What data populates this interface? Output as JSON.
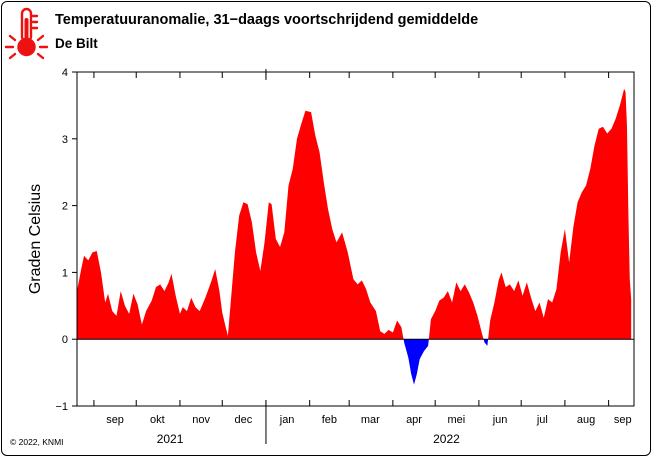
{
  "header": {
    "title": "Temperatuuranomalie, 31−daags voortschrijdend gemiddelde",
    "subtitle": "De Bilt",
    "icon": "thermometer-icon",
    "icon_color": "#ee1111"
  },
  "footer": {
    "copyright": "© 2022, KNMI"
  },
  "chart_data": {
    "type": "area",
    "title": "Temperatuuranomalie, 31−daags voortschrijdend gemiddelde",
    "subtitle": "De Bilt",
    "ylabel": "Graden Celsius",
    "xlabel": "",
    "ylim": [
      -1,
      4
    ],
    "yticks": [
      -1,
      0,
      1,
      2,
      3,
      4
    ],
    "xlim": [
      "2021-08-20",
      "2022-09-19"
    ],
    "grid": false,
    "legend": "none",
    "colors": {
      "positive": "#ff0000",
      "negative": "#0000ff"
    },
    "month_labels": [
      {
        "label": "sep",
        "date": "2021-09-16"
      },
      {
        "label": "okt",
        "date": "2021-10-16"
      },
      {
        "label": "nov",
        "date": "2021-11-16"
      },
      {
        "label": "dec",
        "date": "2021-12-16"
      },
      {
        "label": "jan",
        "date": "2022-01-16"
      },
      {
        "label": "feb",
        "date": "2022-02-15"
      },
      {
        "label": "mar",
        "date": "2022-03-16"
      },
      {
        "label": "apr",
        "date": "2022-04-16"
      },
      {
        "label": "mei",
        "date": "2022-05-16"
      },
      {
        "label": "jun",
        "date": "2022-06-16"
      },
      {
        "label": "jul",
        "date": "2022-07-16"
      },
      {
        "label": "aug",
        "date": "2022-08-16"
      },
      {
        "label": "sep",
        "date": "2022-09-11"
      }
    ],
    "month_ticks": [
      "2021-09-01",
      "2021-10-01",
      "2021-11-01",
      "2021-12-01",
      "2022-01-01",
      "2022-02-01",
      "2022-03-01",
      "2022-04-01",
      "2022-05-01",
      "2022-06-01",
      "2022-07-01",
      "2022-08-01",
      "2022-09-01"
    ],
    "year_labels": [
      {
        "label": "2021",
        "date": "2021-10-25"
      },
      {
        "label": "2022",
        "date": "2022-05-09"
      }
    ],
    "year_separators": [
      "2022-01-01"
    ],
    "series": [
      {
        "values": [
          [
            "2021-08-20",
            0.72
          ],
          [
            "2021-08-23",
            1.05
          ],
          [
            "2021-08-25",
            1.25
          ],
          [
            "2021-08-28",
            1.18
          ],
          [
            "2021-08-31",
            1.3
          ],
          [
            "2021-09-03",
            1.32
          ],
          [
            "2021-09-06",
            1.0
          ],
          [
            "2021-09-09",
            0.55
          ],
          [
            "2021-09-11",
            0.68
          ],
          [
            "2021-09-14",
            0.42
          ],
          [
            "2021-09-17",
            0.35
          ],
          [
            "2021-09-20",
            0.72
          ],
          [
            "2021-09-23",
            0.5
          ],
          [
            "2021-09-26",
            0.38
          ],
          [
            "2021-09-29",
            0.68
          ],
          [
            "2021-10-02",
            0.52
          ],
          [
            "2021-10-05",
            0.22
          ],
          [
            "2021-10-08",
            0.42
          ],
          [
            "2021-10-12",
            0.58
          ],
          [
            "2021-10-15",
            0.78
          ],
          [
            "2021-10-18",
            0.82
          ],
          [
            "2021-10-21",
            0.72
          ],
          [
            "2021-10-24",
            0.85
          ],
          [
            "2021-10-26",
            0.98
          ],
          [
            "2021-10-29",
            0.65
          ],
          [
            "2021-11-01",
            0.38
          ],
          [
            "2021-11-03",
            0.48
          ],
          [
            "2021-11-06",
            0.42
          ],
          [
            "2021-11-09",
            0.62
          ],
          [
            "2021-11-12",
            0.48
          ],
          [
            "2021-11-15",
            0.42
          ],
          [
            "2021-11-19",
            0.62
          ],
          [
            "2021-11-23",
            0.85
          ],
          [
            "2021-11-26",
            1.05
          ],
          [
            "2021-11-29",
            0.72
          ],
          [
            "2021-12-01",
            0.4
          ],
          [
            "2021-12-03",
            0.22
          ],
          [
            "2021-12-05",
            0.05
          ],
          [
            "2021-12-07",
            0.55
          ],
          [
            "2021-12-10",
            1.3
          ],
          [
            "2021-12-13",
            1.85
          ],
          [
            "2021-12-16",
            2.05
          ],
          [
            "2021-12-19",
            2.02
          ],
          [
            "2021-12-22",
            1.75
          ],
          [
            "2021-12-25",
            1.3
          ],
          [
            "2021-12-28",
            1.02
          ],
          [
            "2021-12-31",
            1.45
          ],
          [
            "2022-01-03",
            2.05
          ],
          [
            "2022-01-05",
            2.02
          ],
          [
            "2022-01-08",
            1.5
          ],
          [
            "2022-01-11",
            1.38
          ],
          [
            "2022-01-14",
            1.6
          ],
          [
            "2022-01-17",
            2.3
          ],
          [
            "2022-01-20",
            2.55
          ],
          [
            "2022-01-23",
            3.0
          ],
          [
            "2022-01-26",
            3.22
          ],
          [
            "2022-01-29",
            3.42
          ],
          [
            "2022-02-02",
            3.4
          ],
          [
            "2022-02-05",
            3.05
          ],
          [
            "2022-02-08",
            2.8
          ],
          [
            "2022-02-11",
            2.35
          ],
          [
            "2022-02-14",
            1.95
          ],
          [
            "2022-02-17",
            1.65
          ],
          [
            "2022-02-20",
            1.45
          ],
          [
            "2022-02-24",
            1.6
          ],
          [
            "2022-02-28",
            1.3
          ],
          [
            "2022-03-04",
            0.9
          ],
          [
            "2022-03-07",
            0.82
          ],
          [
            "2022-03-10",
            0.88
          ],
          [
            "2022-03-13",
            0.75
          ],
          [
            "2022-03-16",
            0.55
          ],
          [
            "2022-03-20",
            0.42
          ],
          [
            "2022-03-23",
            0.12
          ],
          [
            "2022-03-26",
            0.08
          ],
          [
            "2022-03-29",
            0.14
          ],
          [
            "2022-04-01",
            0.1
          ],
          [
            "2022-04-04",
            0.28
          ],
          [
            "2022-04-07",
            0.18
          ],
          [
            "2022-04-09",
            -0.05
          ],
          [
            "2022-04-12",
            -0.28
          ],
          [
            "2022-04-14",
            -0.52
          ],
          [
            "2022-04-16",
            -0.68
          ],
          [
            "2022-04-18",
            -0.52
          ],
          [
            "2022-04-20",
            -0.3
          ],
          [
            "2022-04-23",
            -0.18
          ],
          [
            "2022-04-26",
            -0.1
          ],
          [
            "2022-04-28",
            0.3
          ],
          [
            "2022-05-01",
            0.42
          ],
          [
            "2022-05-04",
            0.58
          ],
          [
            "2022-05-07",
            0.62
          ],
          [
            "2022-05-10",
            0.72
          ],
          [
            "2022-05-13",
            0.55
          ],
          [
            "2022-05-16",
            0.85
          ],
          [
            "2022-05-19",
            0.72
          ],
          [
            "2022-05-22",
            0.82
          ],
          [
            "2022-05-25",
            0.7
          ],
          [
            "2022-05-28",
            0.55
          ],
          [
            "2022-05-31",
            0.35
          ],
          [
            "2022-06-03",
            0.1
          ],
          [
            "2022-06-05",
            -0.05
          ],
          [
            "2022-06-07",
            -0.1
          ],
          [
            "2022-06-09",
            0.28
          ],
          [
            "2022-06-12",
            0.55
          ],
          [
            "2022-06-15",
            0.88
          ],
          [
            "2022-06-17",
            1.0
          ],
          [
            "2022-06-20",
            0.78
          ],
          [
            "2022-06-23",
            0.82
          ],
          [
            "2022-06-26",
            0.72
          ],
          [
            "2022-06-29",
            0.88
          ],
          [
            "2022-07-02",
            0.65
          ],
          [
            "2022-07-05",
            0.85
          ],
          [
            "2022-07-08",
            0.62
          ],
          [
            "2022-07-11",
            0.42
          ],
          [
            "2022-07-14",
            0.55
          ],
          [
            "2022-07-17",
            0.32
          ],
          [
            "2022-07-20",
            0.6
          ],
          [
            "2022-07-23",
            0.55
          ],
          [
            "2022-07-26",
            0.75
          ],
          [
            "2022-07-29",
            1.3
          ],
          [
            "2022-08-01",
            1.65
          ],
          [
            "2022-08-04",
            1.15
          ],
          [
            "2022-08-07",
            1.68
          ],
          [
            "2022-08-10",
            2.05
          ],
          [
            "2022-08-13",
            2.2
          ],
          [
            "2022-08-16",
            2.3
          ],
          [
            "2022-08-19",
            2.55
          ],
          [
            "2022-08-22",
            2.9
          ],
          [
            "2022-08-25",
            3.15
          ],
          [
            "2022-08-28",
            3.18
          ],
          [
            "2022-08-31",
            3.08
          ],
          [
            "2022-09-03",
            3.15
          ],
          [
            "2022-09-06",
            3.3
          ],
          [
            "2022-09-09",
            3.5
          ],
          [
            "2022-09-12",
            3.75
          ],
          [
            "2022-09-13",
            3.7
          ],
          [
            "2022-09-14",
            3.2
          ],
          [
            "2022-09-15",
            1.9
          ],
          [
            "2022-09-16",
            0.9
          ],
          [
            "2022-09-17",
            0.6
          ]
        ]
      }
    ]
  }
}
